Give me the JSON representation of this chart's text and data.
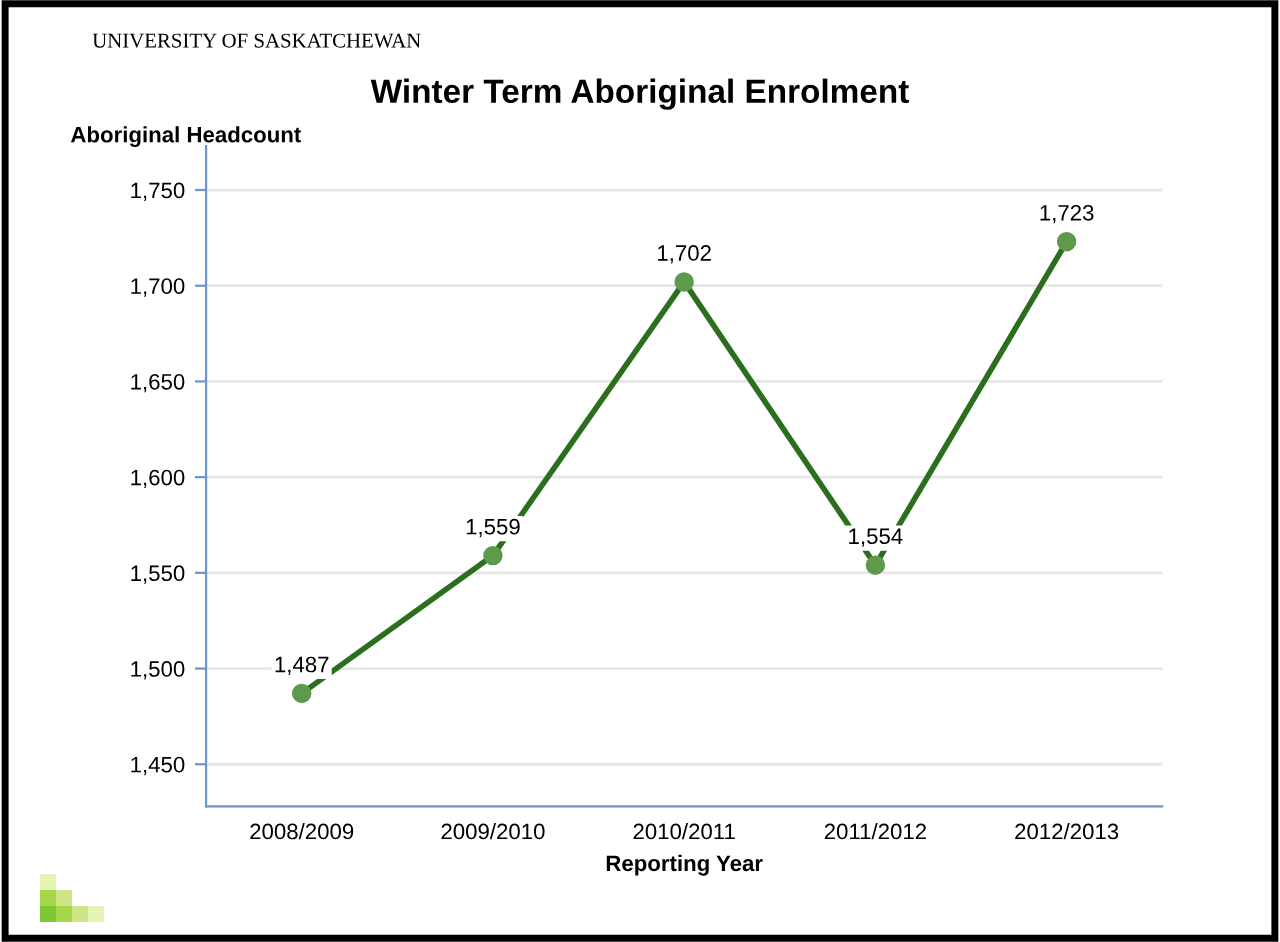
{
  "chart_data": {
    "type": "line",
    "title": "Winter Term Aboriginal Enrolment",
    "ylabel": "Aboriginal Headcount",
    "xlabel": "Reporting Year",
    "annotations": [
      "UNIVERSITY OF SASKATCHEWAN"
    ],
    "categories": [
      "2008/2009",
      "2009/2010",
      "2010/2011",
      "2011/2012",
      "2012/2013"
    ],
    "series": [
      {
        "color": "#2a6e1e",
        "values": [
          1487,
          1559,
          1702,
          1554,
          1723
        ],
        "value_labels": [
          "1,487",
          "1,559",
          "1,702",
          "1,554",
          "1,723"
        ]
      }
    ],
    "ylim": [
      1428,
      1773
    ],
    "yticks": [
      {
        "value": 1450,
        "label": "1,450"
      },
      {
        "value": 1500,
        "label": "1,500"
      },
      {
        "value": 1550,
        "label": "1,550"
      },
      {
        "value": 1600,
        "label": "1,600"
      },
      {
        "value": 1650,
        "label": "1,650"
      },
      {
        "value": 1700,
        "label": "1,700"
      },
      {
        "value": 1750,
        "label": "1,750"
      }
    ],
    "grid": "y",
    "marker": "circle",
    "line_style": "solid",
    "legend": false
  }
}
